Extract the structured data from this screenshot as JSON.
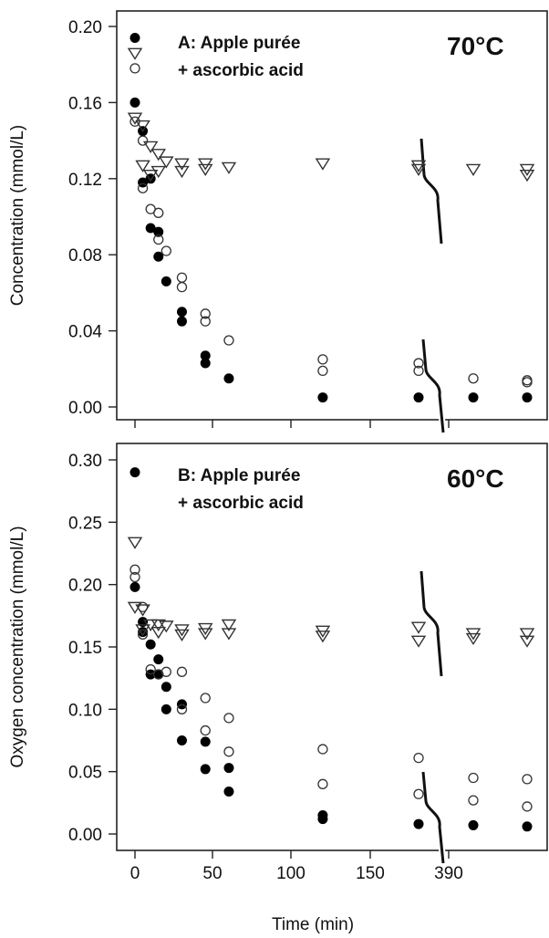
{
  "figure": {
    "shared_xlabel": "Time (min)",
    "x_tick_labels": [
      "0",
      "50",
      "100",
      "150",
      "390"
    ]
  },
  "chart_data": [
    {
      "type": "scatter",
      "panel_label_line1": "A: Apple purée",
      "panel_label_line2": "+ ascorbic acid",
      "temperature_label": "70°C",
      "ylabel": "Concentration (mmol/L)",
      "xlabel": "",
      "ylim": [
        0,
        0.2
      ],
      "yticks": [
        0,
        0.04,
        0.08,
        0.12,
        0.16,
        0.2
      ],
      "y_tick_labels": [
        "0.00",
        "0.04",
        "0.08",
        "0.12",
        "0.16",
        "0.20"
      ],
      "x_axis_note": "broken axis: 0–180 min linear, then later time points; tick 390 printed",
      "series": [
        {
          "marker": "filled-circle",
          "points": [
            [
              0,
              0.194
            ],
            [
              0,
              0.16
            ],
            [
              5,
              0.145
            ],
            [
              5,
              0.118
            ],
            [
              10,
              0.12
            ],
            [
              10,
              0.094
            ],
            [
              15,
              0.092
            ],
            [
              15,
              0.079
            ],
            [
              20,
              0.066
            ],
            [
              30,
              0.05
            ],
            [
              30,
              0.045
            ],
            [
              45,
              0.027
            ],
            [
              45,
              0.023
            ],
            [
              60,
              0.015
            ],
            [
              120,
              0.005
            ],
            [
              180,
              0.005
            ],
            [
              390,
              0.005
            ],
            [
              420,
              0.005
            ]
          ]
        },
        {
          "marker": "open-circle",
          "points": [
            [
              0,
              0.178
            ],
            [
              0,
              0.15
            ],
            [
              5,
              0.14
            ],
            [
              5,
              0.115
            ],
            [
              10,
              0.104
            ],
            [
              15,
              0.102
            ],
            [
              15,
              0.088
            ],
            [
              20,
              0.082
            ],
            [
              30,
              0.068
            ],
            [
              30,
              0.063
            ],
            [
              45,
              0.049
            ],
            [
              45,
              0.045
            ],
            [
              60,
              0.035
            ],
            [
              120,
              0.025
            ],
            [
              120,
              0.019
            ],
            [
              180,
              0.023
            ],
            [
              180,
              0.019
            ],
            [
              390,
              0.015
            ],
            [
              420,
              0.014
            ],
            [
              420,
              0.013
            ]
          ]
        },
        {
          "marker": "open-triangle-down",
          "points": [
            [
              0,
              0.186
            ],
            [
              0,
              0.152
            ],
            [
              5,
              0.148
            ],
            [
              5,
              0.127
            ],
            [
              10,
              0.137
            ],
            [
              10,
              0.122
            ],
            [
              15,
              0.133
            ],
            [
              15,
              0.124
            ],
            [
              20,
              0.129
            ],
            [
              30,
              0.128
            ],
            [
              30,
              0.124
            ],
            [
              45,
              0.128
            ],
            [
              45,
              0.125
            ],
            [
              60,
              0.126
            ],
            [
              120,
              0.128
            ],
            [
              180,
              0.127
            ],
            [
              180,
              0.125
            ],
            [
              390,
              0.125
            ],
            [
              420,
              0.125
            ],
            [
              420,
              0.122
            ]
          ]
        }
      ]
    },
    {
      "type": "scatter",
      "panel_label_line1": "B: Apple purée",
      "panel_label_line2": "+ ascorbic acid",
      "temperature_label": "60°C",
      "ylabel": "Oxygen concentration (mmol/L)",
      "xlabel": "Time (min)",
      "ylim": [
        0,
        0.3
      ],
      "yticks": [
        0,
        0.05,
        0.1,
        0.15,
        0.2,
        0.25,
        0.3
      ],
      "y_tick_labels": [
        "0.00",
        "0.05",
        "0.10",
        "0.15",
        "0.20",
        "0.25",
        "0.30"
      ],
      "x_axis_note": "broken axis: 0–180 min linear, then later time points; tick 390 printed",
      "series": [
        {
          "marker": "filled-circle",
          "points": [
            [
              0,
              0.29
            ],
            [
              0,
              0.198
            ],
            [
              5,
              0.162
            ],
            [
              5,
              0.17
            ],
            [
              10,
              0.152
            ],
            [
              10,
              0.128
            ],
            [
              15,
              0.14
            ],
            [
              15,
              0.128
            ],
            [
              20,
              0.118
            ],
            [
              20,
              0.1
            ],
            [
              30,
              0.104
            ],
            [
              30,
              0.075
            ],
            [
              45,
              0.074
            ],
            [
              45,
              0.052
            ],
            [
              60,
              0.053
            ],
            [
              60,
              0.034
            ],
            [
              120,
              0.015
            ],
            [
              120,
              0.012
            ],
            [
              180,
              0.008
            ],
            [
              390,
              0.007
            ],
            [
              420,
              0.006
            ]
          ]
        },
        {
          "marker": "open-circle",
          "points": [
            [
              0,
              0.212
            ],
            [
              0,
              0.206
            ],
            [
              5,
              0.182
            ],
            [
              5,
              0.16
            ],
            [
              10,
              0.132
            ],
            [
              15,
              0.128
            ],
            [
              20,
              0.13
            ],
            [
              30,
              0.13
            ],
            [
              30,
              0.1
            ],
            [
              45,
              0.109
            ],
            [
              45,
              0.083
            ],
            [
              60,
              0.093
            ],
            [
              60,
              0.066
            ],
            [
              120,
              0.068
            ],
            [
              120,
              0.04
            ],
            [
              180,
              0.061
            ],
            [
              180,
              0.032
            ],
            [
              390,
              0.045
            ],
            [
              390,
              0.027
            ],
            [
              420,
              0.044
            ],
            [
              420,
              0.022
            ]
          ]
        },
        {
          "marker": "open-triangle-down",
          "points": [
            [
              0,
              0.234
            ],
            [
              0,
              0.182
            ],
            [
              5,
              0.18
            ],
            [
              5,
              0.164
            ],
            [
              10,
              0.168
            ],
            [
              15,
              0.168
            ],
            [
              15,
              0.162
            ],
            [
              20,
              0.167
            ],
            [
              30,
              0.164
            ],
            [
              30,
              0.16
            ],
            [
              45,
              0.165
            ],
            [
              45,
              0.161
            ],
            [
              60,
              0.168
            ],
            [
              60,
              0.161
            ],
            [
              120,
              0.163
            ],
            [
              120,
              0.159
            ],
            [
              180,
              0.166
            ],
            [
              180,
              0.155
            ],
            [
              390,
              0.161
            ],
            [
              390,
              0.157
            ],
            [
              420,
              0.161
            ],
            [
              420,
              0.155
            ]
          ]
        }
      ]
    }
  ]
}
